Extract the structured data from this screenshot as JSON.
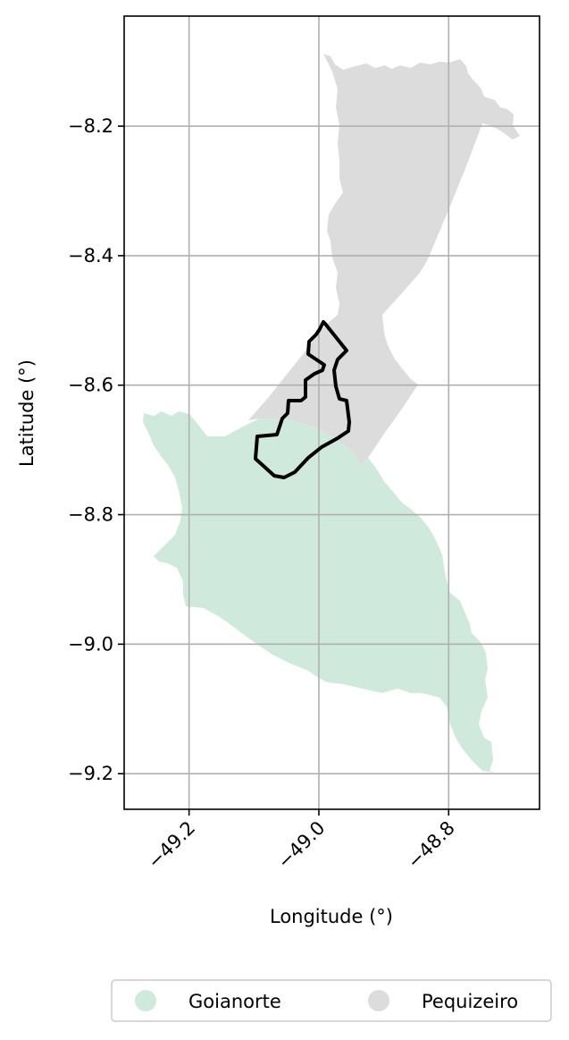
{
  "map": {
    "xlabel": "Longitude (°)",
    "ylabel": "Latitude (°)",
    "xlim": [
      -49.3,
      -48.66
    ],
    "ylim": [
      -9.255,
      -8.03
    ],
    "grid": true,
    "x_ticks": [
      {
        "value": -49.2,
        "label": "−49.2"
      },
      {
        "value": -49.0,
        "label": "−49.0"
      },
      {
        "value": -48.8,
        "label": "−48.8"
      }
    ],
    "y_ticks": [
      {
        "value": -8.2,
        "label": "−8.2"
      },
      {
        "value": -8.4,
        "label": "−8.4"
      },
      {
        "value": -8.6,
        "label": "−8.6"
      },
      {
        "value": -8.8,
        "label": "−8.8"
      },
      {
        "value": -9.0,
        "label": "−9.0"
      },
      {
        "value": -9.2,
        "label": "−9.2"
      }
    ],
    "regions": [
      {
        "name": "Goianorte",
        "color": "#cfeadc"
      },
      {
        "name": "Pequizeiro",
        "color": "#dcdcdc"
      }
    ],
    "outline_color": "#000000",
    "legend": {
      "placement": "bottom-center",
      "entries": [
        {
          "label": "Goianorte",
          "color": "#cfeadc"
        },
        {
          "label": "Pequizeiro",
          "color": "#dcdcdc"
        }
      ]
    }
  }
}
